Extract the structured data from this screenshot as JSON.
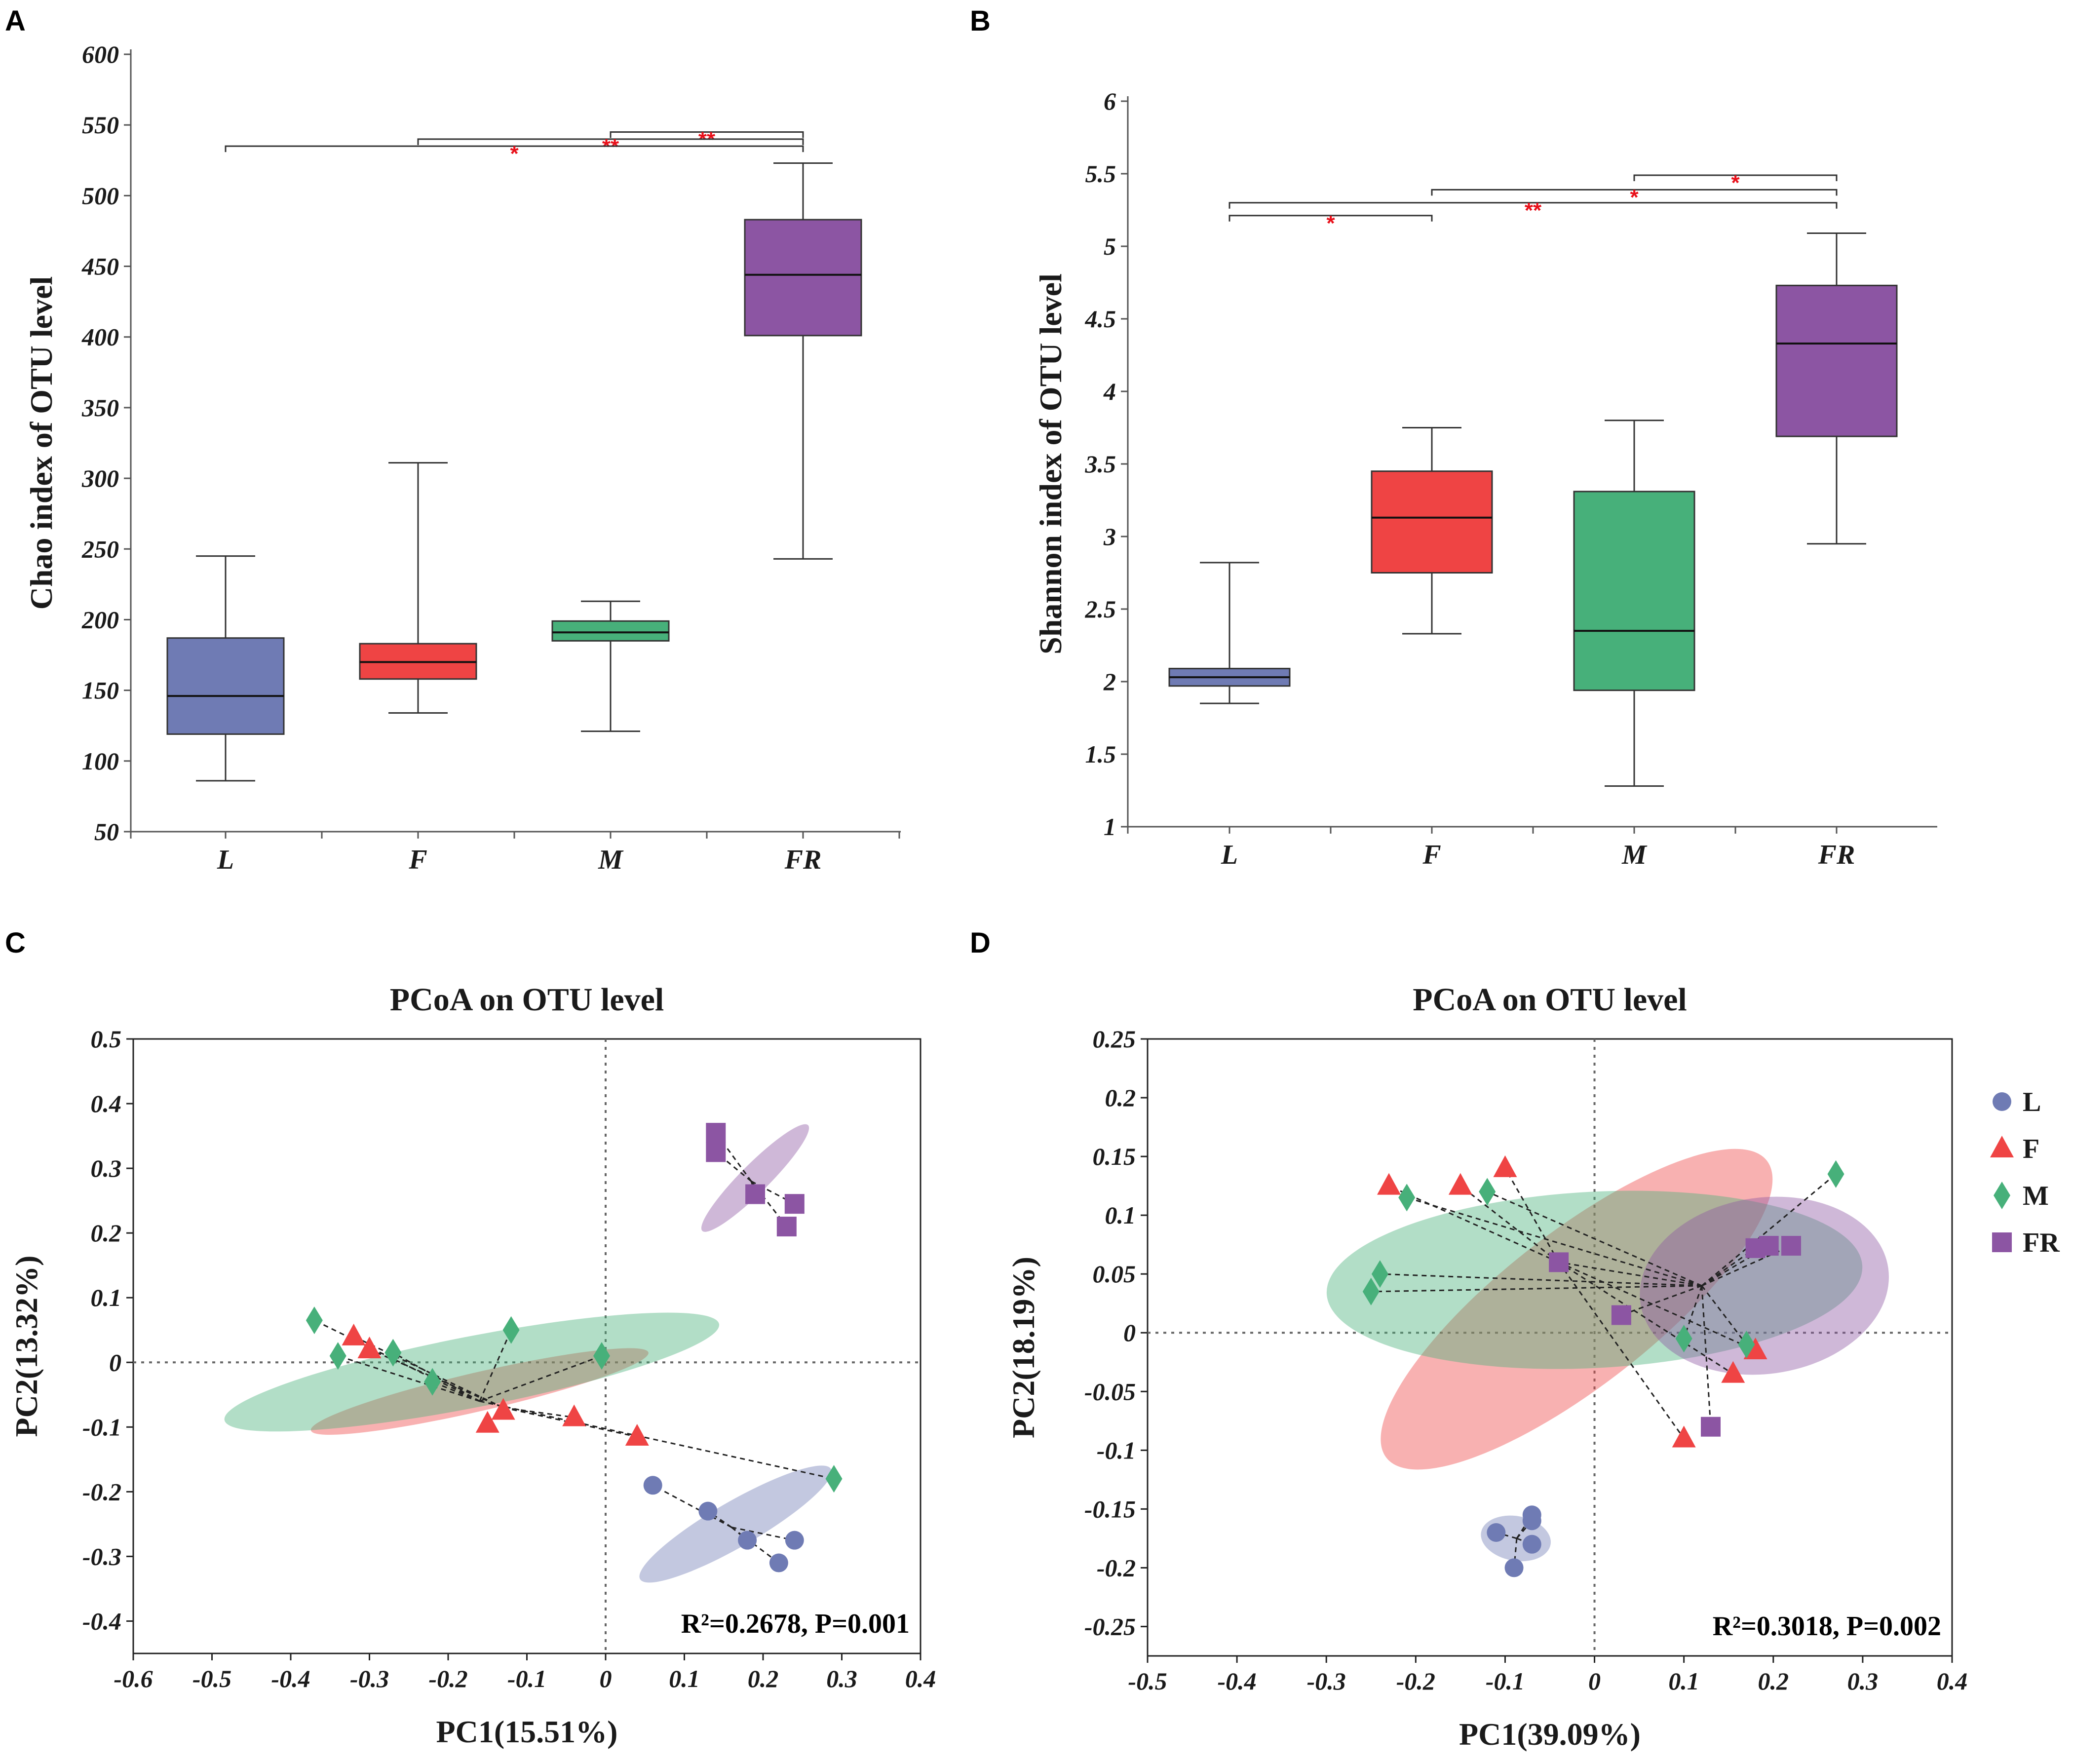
{
  "panels": {
    "A": {
      "letter": "A"
    },
    "B": {
      "letter": "B"
    },
    "C": {
      "letter": "C"
    },
    "D": {
      "letter": "D"
    }
  },
  "colors": {
    "L": "#6f7bb4",
    "F": "#ef4444",
    "M": "#47b07a",
    "FR": "#8c55a3",
    "sig": "#e8101a"
  },
  "chart_data": [
    {
      "id": "A",
      "type": "box",
      "title": "",
      "ylabel": "Chao index of OTU level",
      "ylim": [
        50,
        600
      ],
      "yticks": [
        "50",
        "100",
        "150",
        "200",
        "250",
        "300",
        "350",
        "400",
        "450",
        "500",
        "550",
        "600"
      ],
      "categories": [
        "L",
        "F",
        "M",
        "FR"
      ],
      "boxes": [
        {
          "group": "L",
          "min": 86,
          "q1": 119,
          "median": 146,
          "q3": 187,
          "max": 245
        },
        {
          "group": "F",
          "min": 134,
          "q1": 158,
          "median": 170,
          "q3": 183,
          "max": 311
        },
        {
          "group": "M",
          "min": 121,
          "q1": 185,
          "median": 191,
          "q3": 199,
          "max": 213
        },
        {
          "group": "FR",
          "min": 243,
          "q1": 401,
          "median": 444,
          "q3": 483,
          "max": 523
        }
      ],
      "significance": [
        {
          "from": "M",
          "to": "FR",
          "y": 545,
          "label": "**"
        },
        {
          "from": "F",
          "to": "FR",
          "y": 540,
          "label": "**"
        },
        {
          "from": "L",
          "to": "FR",
          "y": 535,
          "label": "*"
        }
      ]
    },
    {
      "id": "B",
      "type": "box",
      "title": "",
      "ylabel": "Shannon index of OTU level",
      "ylim": [
        1,
        6
      ],
      "yticks": [
        "1",
        "1.5",
        "2",
        "2.5",
        "3",
        "3.5",
        "4",
        "4.5",
        "5",
        "5.5",
        "6"
      ],
      "categories": [
        "L",
        "F",
        "M",
        "FR"
      ],
      "boxes": [
        {
          "group": "L",
          "min": 1.85,
          "q1": 1.97,
          "median": 2.03,
          "q3": 2.09,
          "max": 2.82
        },
        {
          "group": "F",
          "min": 2.33,
          "q1": 2.75,
          "median": 3.13,
          "q3": 3.45,
          "max": 3.75
        },
        {
          "group": "M",
          "min": 1.28,
          "q1": 1.94,
          "median": 2.35,
          "q3": 3.31,
          "max": 3.8
        },
        {
          "group": "FR",
          "min": 2.95,
          "q1": 3.69,
          "median": 4.33,
          "q3": 4.73,
          "max": 5.09
        }
      ],
      "significance": [
        {
          "from": "M",
          "to": "FR",
          "y": 5.49,
          "label": "*"
        },
        {
          "from": "F",
          "to": "FR",
          "y": 5.39,
          "label": "*"
        },
        {
          "from": "L",
          "to": "F",
          "y": 5.3,
          "label": "*",
          "underTwo": true
        },
        {
          "from": "L",
          "to": "FR",
          "y": 5.3,
          "label": "**"
        }
      ]
    },
    {
      "id": "C",
      "type": "scatter",
      "title": "PCoA on OTU level",
      "xlabel": "PC1(15.51%)",
      "ylabel": "PC2(13.32%)",
      "xlim": [
        -0.6,
        0.4
      ],
      "ylim": [
        -0.45,
        0.5
      ],
      "xticks": [
        "-0.6",
        "-0.5",
        "-0.4",
        "-0.3",
        "-0.2",
        "-0.1",
        "0",
        "0.1",
        "0.2",
        "0.3",
        "0.4"
      ],
      "yticks": [
        "-0.4",
        "-0.3",
        "-0.2",
        "-0.1",
        "0",
        "0.1",
        "0.2",
        "0.3",
        "0.4",
        "0.5"
      ],
      "annotation": "R²=0.2678, P=0.001",
      "groups": [
        {
          "name": "L",
          "shape": "circle",
          "centroid": [
            0.16,
            -0.255
          ],
          "points": [
            [
              0.06,
              -0.19
            ],
            [
              0.13,
              -0.23
            ],
            [
              0.18,
              -0.275
            ],
            [
              0.22,
              -0.31
            ],
            [
              0.24,
              -0.275
            ]
          ],
          "ellipse": {
            "cx": 0.165,
            "cy": -0.25,
            "rx": 0.14,
            "ry": 0.035,
            "angle": -30
          }
        },
        {
          "name": "F",
          "shape": "triangle",
          "centroid": [
            -0.13,
            -0.07
          ],
          "points": [
            [
              -0.32,
              0.04
            ],
            [
              -0.3,
              0.02
            ],
            [
              -0.15,
              -0.095
            ],
            [
              -0.13,
              -0.075
            ],
            [
              -0.04,
              -0.085
            ],
            [
              0.04,
              -0.115
            ]
          ],
          "ellipse": {
            "cx": -0.16,
            "cy": -0.045,
            "rx": 0.22,
            "ry": 0.03,
            "angle": -13
          }
        },
        {
          "name": "M",
          "shape": "diamond",
          "centroid": [
            -0.16,
            -0.06
          ],
          "points": [
            [
              -0.37,
              0.065
            ],
            [
              -0.34,
              0.01
            ],
            [
              -0.27,
              0.015
            ],
            [
              -0.22,
              -0.03
            ],
            [
              -0.12,
              0.05
            ],
            [
              -0.005,
              0.01
            ],
            [
              0.29,
              -0.18
            ]
          ],
          "ellipse": {
            "cx": -0.17,
            "cy": -0.015,
            "rx": 0.32,
            "ry": 0.055,
            "angle": -11
          }
        },
        {
          "name": "FR",
          "shape": "square",
          "centroid": [
            0.185,
            0.28
          ],
          "points": [
            [
              0.14,
              0.355
            ],
            [
              0.14,
              0.325
            ],
            [
              0.19,
              0.26
            ],
            [
              0.23,
              0.21
            ],
            [
              0.24,
              0.245
            ]
          ],
          "ellipse": {
            "cx": 0.19,
            "cy": 0.285,
            "rx": 0.095,
            "ry": 0.022,
            "angle": -45
          }
        }
      ]
    },
    {
      "id": "D",
      "type": "scatter",
      "title": "PCoA on OTU level",
      "xlabel": "PC1(39.09%)",
      "ylabel": "PC2(18.19%)",
      "xlim": [
        -0.5,
        0.4
      ],
      "ylim": [
        -0.275,
        0.25
      ],
      "xticks": [
        "-0.5",
        "-0.4",
        "-0.3",
        "-0.2",
        "-0.1",
        "0",
        "0.1",
        "0.2",
        "0.3",
        "0.4"
      ],
      "yticks": [
        "-0.25",
        "-0.2",
        "-0.15",
        "-0.1",
        "-0.05",
        "0",
        "0.05",
        "0.1",
        "0.15",
        "0.2",
        "0.25"
      ],
      "annotation": "R²=0.3018, P=0.002",
      "legend": [
        "L",
        "F",
        "M",
        "FR"
      ],
      "groups": [
        {
          "name": "L",
          "shape": "circle",
          "centroid": [
            -0.087,
            -0.175
          ],
          "points": [
            [
              -0.11,
              -0.17
            ],
            [
              -0.07,
              -0.155
            ],
            [
              -0.07,
              -0.16
            ],
            [
              -0.07,
              -0.18
            ],
            [
              -0.09,
              -0.2
            ]
          ],
          "ellipse": {
            "cx": -0.088,
            "cy": -0.175,
            "rx": 0.025,
            "ry": 0.03,
            "angle": -80
          }
        },
        {
          "name": "F",
          "shape": "triangle",
          "centroid": [
            -0.04,
            0.06
          ],
          "points": [
            [
              -0.23,
              0.125
            ],
            [
              -0.15,
              0.125
            ],
            [
              -0.1,
              0.14
            ],
            [
              0.1,
              -0.09
            ],
            [
              0.155,
              -0.035
            ],
            [
              0.18,
              -0.015
            ]
          ],
          "ellipse": {
            "cx": -0.02,
            "cy": 0.02,
            "rx": 0.27,
            "ry": 0.065,
            "angle": -38
          }
        },
        {
          "name": "M",
          "shape": "diamond",
          "centroid": [
            0.12,
            0.04
          ],
          "points": [
            [
              -0.25,
              0.035
            ],
            [
              -0.24,
              0.05
            ],
            [
              -0.21,
              0.115
            ],
            [
              -0.12,
              0.12
            ],
            [
              0.1,
              -0.005
            ],
            [
              0.17,
              -0.01
            ],
            [
              0.27,
              0.135
            ]
          ],
          "ellipse": {
            "cx": 0.0,
            "cy": 0.045,
            "rx": 0.3,
            "ry": 0.075,
            "angle": -3
          }
        },
        {
          "name": "FR",
          "shape": "square",
          "centroid": [
            0.12,
            0.04
          ],
          "points": [
            [
              -0.04,
              0.06
            ],
            [
              0.03,
              0.015
            ],
            [
              0.13,
              -0.08
            ],
            [
              0.18,
              0.072
            ],
            [
              0.195,
              0.074
            ],
            [
              0.22,
              0.074
            ]
          ],
          "ellipse": {
            "cx": 0.19,
            "cy": 0.04,
            "rx": 0.14,
            "ry": 0.075,
            "angle": -8
          }
        }
      ]
    }
  ]
}
